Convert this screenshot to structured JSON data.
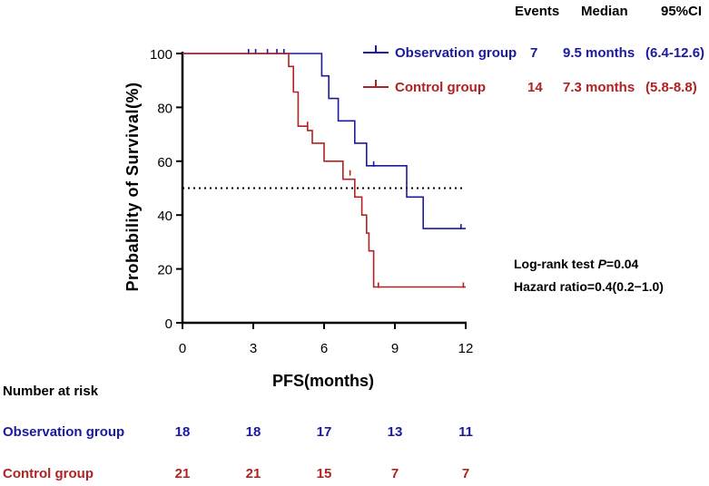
{
  "chart_data": {
    "type": "line",
    "subtype": "kaplan-meier",
    "title": "",
    "xlabel": "PFS(months)",
    "ylabel": "Probability of Survival(%)",
    "xlim": [
      0,
      12
    ],
    "ylim": [
      0,
      100
    ],
    "xticks": [
      0,
      3,
      6,
      9,
      12
    ],
    "yticks": [
      0,
      20,
      40,
      60,
      80,
      100
    ],
    "reference_line": {
      "y": 50,
      "style": "dotted",
      "color": "#000000"
    },
    "legend_headers": {
      "events": "Events",
      "median": "Median",
      "ci": "95%CI"
    },
    "series": [
      {
        "name": "Observation group",
        "color": "#1a1a9e",
        "events": "7",
        "median": "9.5 months",
        "ci": "(6.4-12.6)",
        "steps": [
          [
            0,
            100
          ],
          [
            5.9,
            100
          ],
          [
            5.9,
            91.7
          ],
          [
            6.2,
            91.7
          ],
          [
            6.2,
            83.3
          ],
          [
            6.6,
            83.3
          ],
          [
            6.6,
            75
          ],
          [
            7.3,
            75
          ],
          [
            7.3,
            66.7
          ],
          [
            7.8,
            66.7
          ],
          [
            7.8,
            58.3
          ],
          [
            9.5,
            58.3
          ],
          [
            9.5,
            46.7
          ],
          [
            10.2,
            46.7
          ],
          [
            10.2,
            35
          ],
          [
            12,
            35
          ]
        ],
        "censored": [
          [
            2.8,
            100
          ],
          [
            3.1,
            100
          ],
          [
            3.6,
            100
          ],
          [
            4.0,
            100
          ],
          [
            4.3,
            100
          ],
          [
            8.1,
            58.3
          ],
          [
            11.8,
            35
          ]
        ]
      },
      {
        "name": "Control group",
        "color": "#b22222",
        "events": "14",
        "median": "7.3 months",
        "ci": "(5.8-8.8)",
        "steps": [
          [
            0,
            100
          ],
          [
            4.5,
            100
          ],
          [
            4.5,
            95.2
          ],
          [
            4.7,
            95.2
          ],
          [
            4.7,
            85.7
          ],
          [
            4.9,
            85.7
          ],
          [
            4.9,
            73
          ],
          [
            5.3,
            73
          ],
          [
            5.3,
            71.4
          ],
          [
            5.5,
            71.4
          ],
          [
            5.5,
            66.7
          ],
          [
            6.0,
            66.7
          ],
          [
            6.0,
            60
          ],
          [
            6.8,
            60
          ],
          [
            6.8,
            53.3
          ],
          [
            7.3,
            53.3
          ],
          [
            7.3,
            46.7
          ],
          [
            7.6,
            46.7
          ],
          [
            7.6,
            40
          ],
          [
            7.8,
            40
          ],
          [
            7.8,
            33.3
          ],
          [
            7.9,
            33.3
          ],
          [
            7.9,
            26.7
          ],
          [
            8.1,
            26.7
          ],
          [
            8.1,
            13.3
          ],
          [
            12,
            13.3
          ]
        ],
        "censored": [
          [
            5.3,
            73
          ],
          [
            7.1,
            55
          ],
          [
            8.3,
            13.3
          ],
          [
            11.9,
            13.3
          ]
        ]
      }
    ],
    "annotations": {
      "logrank_prefix": "Log-rank test ",
      "logrank_p": "P",
      "logrank_value": "=0.04",
      "hazard_ratio": "Hazard ratio=0.4(0.2−1.0)"
    },
    "risk_table": {
      "title": "Number at risk",
      "rows": [
        {
          "name": "Observation group",
          "values": [
            "18",
            "18",
            "17",
            "13",
            "11"
          ]
        },
        {
          "name": "Control group",
          "values": [
            "21",
            "21",
            "15",
            "7",
            "7"
          ]
        }
      ]
    }
  }
}
